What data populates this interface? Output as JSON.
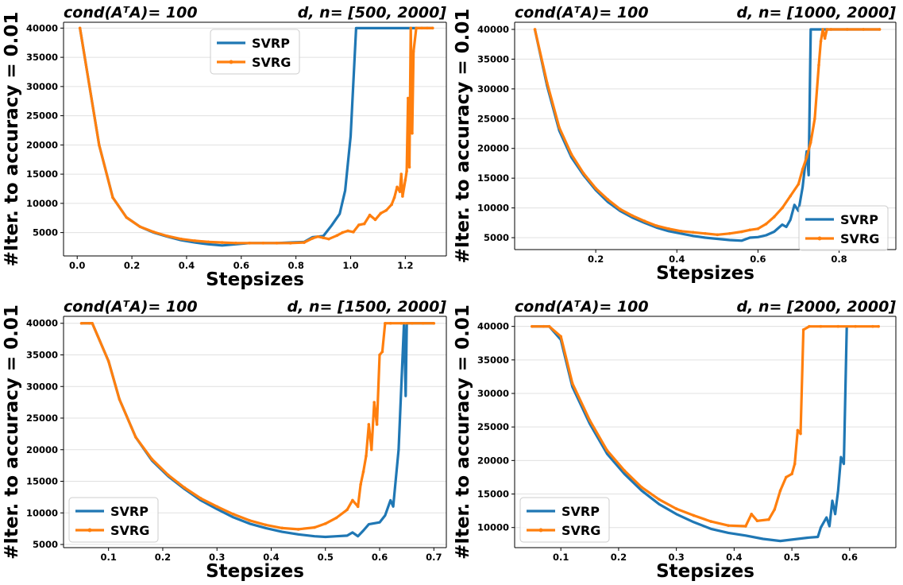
{
  "colors": {
    "SVRP": "#1f77b4",
    "SVRG": "#ff7f0e",
    "grid": "#e0e0e0"
  },
  "chart_data": [
    {
      "type": "line",
      "title_left": "cond(AᵀA)= 100",
      "title_right": "d, n= [500, 2000]",
      "xlabel": "Stepsizes",
      "ylabel": "#Iter. to accuracy = 0.01",
      "xlim": [
        -0.05,
        1.35
      ],
      "ylim": [
        1000,
        41000
      ],
      "xticks": [
        {
          "v": 0.0,
          "label": "0.0"
        },
        {
          "v": 0.2,
          "label": "0.2"
        },
        {
          "v": 0.4,
          "label": "0.4"
        },
        {
          "v": 0.6,
          "label": "0.6"
        },
        {
          "v": 0.8,
          "label": "0.8"
        },
        {
          "v": 1.0,
          "label": "1.0"
        },
        {
          "v": 1.2,
          "label": "1.2"
        }
      ],
      "yticks": [
        {
          "v": 5000,
          "label": "5000"
        },
        {
          "v": 10000,
          "label": "10000"
        },
        {
          "v": 15000,
          "label": "15000"
        },
        {
          "v": 20000,
          "label": "20000"
        },
        {
          "v": 25000,
          "label": "25000"
        },
        {
          "v": 30000,
          "label": "30000"
        },
        {
          "v": 35000,
          "label": "35000"
        },
        {
          "v": 40000,
          "label": "40000"
        }
      ],
      "grid": "horizontal",
      "legend_position": "upper-center",
      "series": [
        {
          "name": "SVRP",
          "x": [
            0.01,
            0.08,
            0.13,
            0.18,
            0.23,
            0.28,
            0.33,
            0.38,
            0.43,
            0.48,
            0.53,
            0.58,
            0.63,
            0.68,
            0.73,
            0.78,
            0.83,
            0.86,
            0.9,
            0.93,
            0.96,
            0.98,
            1.0,
            1.02,
            1.05,
            1.1,
            1.15,
            1.2,
            1.25,
            1.3
          ],
          "y": [
            40000,
            20000,
            11000,
            7600,
            6000,
            5000,
            4300,
            3700,
            3300,
            3000,
            2800,
            3000,
            3200,
            3200,
            3200,
            3300,
            3400,
            4200,
            4400,
            6200,
            8200,
            12200,
            21500,
            40000,
            40000,
            40000,
            40000,
            40000,
            40000,
            40000
          ]
        },
        {
          "name": "SVRG",
          "x": [
            0.01,
            0.08,
            0.13,
            0.18,
            0.23,
            0.28,
            0.33,
            0.38,
            0.43,
            0.48,
            0.53,
            0.58,
            0.63,
            0.68,
            0.73,
            0.78,
            0.83,
            0.86,
            0.88,
            0.9,
            0.92,
            0.95,
            0.97,
            0.99,
            1.01,
            1.03,
            1.05,
            1.07,
            1.09,
            1.11,
            1.13,
            1.15,
            1.16,
            1.17,
            1.18,
            1.185,
            1.19,
            1.2,
            1.205,
            1.21,
            1.215,
            1.22,
            1.225,
            1.23,
            1.24,
            1.26,
            1.28,
            1.3
          ],
          "y": [
            40000,
            20000,
            11000,
            7600,
            6000,
            5100,
            4400,
            3900,
            3600,
            3400,
            3300,
            3200,
            3200,
            3200,
            3200,
            3200,
            3300,
            4000,
            4300,
            4100,
            3900,
            4500,
            5000,
            5300,
            5100,
            6300,
            6500,
            8000,
            7200,
            8300,
            8800,
            9800,
            11000,
            12800,
            12000,
            15000,
            11200,
            14000,
            15500,
            28000,
            16200,
            40000,
            22000,
            36000,
            40000,
            40000,
            40000,
            40000
          ]
        }
      ]
    },
    {
      "type": "line",
      "title_left": "cond(AᵀA)= 100",
      "title_right": "d, n= [1000, 2000]",
      "xlabel": "Stepsizes",
      "ylabel": "#Iter. to accuracy = 0.01",
      "xlim": [
        0.0,
        0.94
      ],
      "ylim": [
        3000,
        41200
      ],
      "xticks": [
        {
          "v": 0.2,
          "label": "0.2"
        },
        {
          "v": 0.4,
          "label": "0.4"
        },
        {
          "v": 0.6,
          "label": "0.6"
        },
        {
          "v": 0.8,
          "label": "0.8"
        }
      ],
      "yticks": [
        {
          "v": 5000,
          "label": "5000"
        },
        {
          "v": 10000,
          "label": "10000"
        },
        {
          "v": 15000,
          "label": "15000"
        },
        {
          "v": 20000,
          "label": "20000"
        },
        {
          "v": 25000,
          "label": "25000"
        },
        {
          "v": 30000,
          "label": "30000"
        },
        {
          "v": 35000,
          "label": "35000"
        },
        {
          "v": 40000,
          "label": "40000"
        }
      ],
      "grid": "horizontal",
      "legend_position": "lower-right",
      "series": [
        {
          "name": "SVRP",
          "x": [
            0.05,
            0.08,
            0.11,
            0.14,
            0.17,
            0.2,
            0.23,
            0.26,
            0.29,
            0.32,
            0.35,
            0.38,
            0.41,
            0.44,
            0.47,
            0.5,
            0.53,
            0.56,
            0.58,
            0.6,
            0.62,
            0.64,
            0.66,
            0.67,
            0.68,
            0.69,
            0.7,
            0.71,
            0.72,
            0.725,
            0.73,
            0.74,
            0.78,
            0.82,
            0.86,
            0.9
          ],
          "y": [
            40000,
            30500,
            23000,
            18500,
            15500,
            13000,
            11000,
            9500,
            8400,
            7500,
            6700,
            6100,
            5700,
            5300,
            5000,
            4800,
            4600,
            4500,
            5000,
            5100,
            5400,
            6000,
            7200,
            6800,
            8000,
            10500,
            9500,
            13500,
            19500,
            15500,
            40000,
            40000,
            40000,
            40000,
            40000,
            40000
          ]
        },
        {
          "name": "SVRG",
          "x": [
            0.05,
            0.08,
            0.11,
            0.14,
            0.17,
            0.2,
            0.23,
            0.26,
            0.29,
            0.32,
            0.35,
            0.38,
            0.41,
            0.44,
            0.47,
            0.5,
            0.53,
            0.56,
            0.58,
            0.6,
            0.62,
            0.64,
            0.66,
            0.68,
            0.7,
            0.71,
            0.72,
            0.73,
            0.74,
            0.75,
            0.755,
            0.76,
            0.765,
            0.77,
            0.78,
            0.82,
            0.86,
            0.9
          ],
          "y": [
            40000,
            31000,
            23500,
            19000,
            15800,
            13300,
            11400,
            9800,
            8700,
            7800,
            7000,
            6500,
            6100,
            5900,
            5700,
            5500,
            5700,
            6000,
            6300,
            6500,
            7300,
            8500,
            10000,
            12000,
            14000,
            16500,
            18500,
            21000,
            25000,
            34000,
            38000,
            40000,
            38500,
            40000,
            40000,
            40000,
            40000,
            40000
          ]
        }
      ]
    },
    {
      "type": "line",
      "title_left": "cond(AᵀA)= 100",
      "title_right": "d, n= [1500, 2000]",
      "xlabel": "Stepsizes",
      "ylabel": "#Iter. to accuracy = 0.01",
      "xlim": [
        0.017,
        0.723
      ],
      "ylim": [
        4500,
        41100
      ],
      "xticks": [
        {
          "v": 0.1,
          "label": "0.1"
        },
        {
          "v": 0.2,
          "label": "0.2"
        },
        {
          "v": 0.3,
          "label": "0.3"
        },
        {
          "v": 0.4,
          "label": "0.4"
        },
        {
          "v": 0.5,
          "label": "0.5"
        },
        {
          "v": 0.6,
          "label": "0.6"
        },
        {
          "v": 0.7,
          "label": "0.7"
        }
      ],
      "yticks": [
        {
          "v": 5000,
          "label": "5000"
        },
        {
          "v": 10000,
          "label": "10000"
        },
        {
          "v": 15000,
          "label": "15000"
        },
        {
          "v": 20000,
          "label": "20000"
        },
        {
          "v": 25000,
          "label": "25000"
        },
        {
          "v": 30000,
          "label": "30000"
        },
        {
          "v": 35000,
          "label": "35000"
        },
        {
          "v": 40000,
          "label": "40000"
        }
      ],
      "grid": "horizontal",
      "legend_position": "lower-left",
      "series": [
        {
          "name": "SVRP",
          "x": [
            0.05,
            0.065,
            0.07,
            0.1,
            0.12,
            0.15,
            0.18,
            0.21,
            0.24,
            0.27,
            0.3,
            0.33,
            0.36,
            0.39,
            0.42,
            0.45,
            0.48,
            0.5,
            0.52,
            0.54,
            0.55,
            0.56,
            0.57,
            0.58,
            0.6,
            0.61,
            0.62,
            0.625,
            0.63,
            0.635,
            0.64,
            0.645,
            0.648,
            0.65,
            0.66,
            0.68,
            0.7
          ],
          "y": [
            40000,
            40000,
            40000,
            34000,
            28000,
            22000,
            18300,
            15800,
            13800,
            12000,
            10600,
            9300,
            8300,
            7600,
            7000,
            6600,
            6300,
            6200,
            6300,
            6400,
            6900,
            6300,
            7200,
            8200,
            8500,
            9600,
            12000,
            11000,
            15500,
            20000,
            30000,
            40000,
            28500,
            40000,
            40000,
            40000,
            40000
          ]
        },
        {
          "name": "SVRG",
          "x": [
            0.05,
            0.065,
            0.07,
            0.1,
            0.12,
            0.15,
            0.18,
            0.21,
            0.24,
            0.27,
            0.3,
            0.33,
            0.36,
            0.39,
            0.42,
            0.45,
            0.48,
            0.5,
            0.52,
            0.54,
            0.55,
            0.56,
            0.565,
            0.57,
            0.575,
            0.58,
            0.585,
            0.59,
            0.595,
            0.6,
            0.605,
            0.61,
            0.62,
            0.64,
            0.66,
            0.68,
            0.7
          ],
          "y": [
            40000,
            40000,
            40000,
            34000,
            28000,
            22000,
            18500,
            16000,
            14000,
            12300,
            11000,
            9800,
            8800,
            8100,
            7600,
            7400,
            7700,
            8300,
            9200,
            10500,
            12000,
            11000,
            14500,
            16500,
            19000,
            24000,
            20000,
            27500,
            24000,
            35000,
            35500,
            40000,
            40000,
            40000,
            40000,
            40000,
            40000
          ]
        }
      ]
    },
    {
      "type": "line",
      "title_left": "cond(AᵀA)= 100",
      "title_right": "d, n= [2000, 2000]",
      "xlabel": "Stepsizes",
      "ylabel": "#Iter. to accuracy = 0.01",
      "xlim": [
        0.02,
        0.68
      ],
      "ylim": [
        7000,
        41500
      ],
      "xticks": [
        {
          "v": 0.1,
          "label": "0.1"
        },
        {
          "v": 0.2,
          "label": "0.2"
        },
        {
          "v": 0.3,
          "label": "0.3"
        },
        {
          "v": 0.4,
          "label": "0.4"
        },
        {
          "v": 0.5,
          "label": "0.5"
        },
        {
          "v": 0.6,
          "label": "0.6"
        }
      ],
      "yticks": [
        {
          "v": 10000,
          "label": "10000"
        },
        {
          "v": 15000,
          "label": "15000"
        },
        {
          "v": 20000,
          "label": "20000"
        },
        {
          "v": 25000,
          "label": "25000"
        },
        {
          "v": 30000,
          "label": "30000"
        },
        {
          "v": 35000,
          "label": "35000"
        },
        {
          "v": 40000,
          "label": "40000"
        }
      ],
      "grid": "horizontal",
      "legend_position": "lower-left",
      "series": [
        {
          "name": "SVRP",
          "x": [
            0.05,
            0.07,
            0.08,
            0.1,
            0.12,
            0.15,
            0.18,
            0.21,
            0.24,
            0.27,
            0.3,
            0.33,
            0.36,
            0.39,
            0.42,
            0.45,
            0.48,
            0.5,
            0.53,
            0.545,
            0.55,
            0.56,
            0.565,
            0.57,
            0.575,
            0.58,
            0.585,
            0.59,
            0.595
          ],
          "y": [
            40000,
            40000,
            40000,
            38000,
            31000,
            25500,
            21000,
            18000,
            15500,
            13500,
            12000,
            10800,
            9800,
            9200,
            8800,
            8300,
            8000,
            8200,
            8500,
            8600,
            10000,
            11500,
            10200,
            14000,
            12000,
            15500,
            20500,
            19500,
            40000
          ]
        },
        {
          "name": "SVRG",
          "x": [
            0.05,
            0.07,
            0.08,
            0.1,
            0.12,
            0.15,
            0.18,
            0.21,
            0.24,
            0.27,
            0.3,
            0.33,
            0.36,
            0.39,
            0.42,
            0.43,
            0.44,
            0.46,
            0.47,
            0.48,
            0.49,
            0.5,
            0.505,
            0.51,
            0.515,
            0.52,
            0.53,
            0.55,
            0.58,
            0.61,
            0.64,
            0.65
          ],
          "y": [
            40000,
            40000,
            40000,
            38500,
            31500,
            26000,
            21500,
            18500,
            16000,
            14200,
            12800,
            11800,
            10900,
            10300,
            10200,
            12000,
            11000,
            11200,
            12700,
            15500,
            17500,
            18000,
            19500,
            24500,
            24000,
            39500,
            40000,
            40000,
            40000,
            40000,
            40000,
            40000
          ]
        }
      ]
    }
  ]
}
